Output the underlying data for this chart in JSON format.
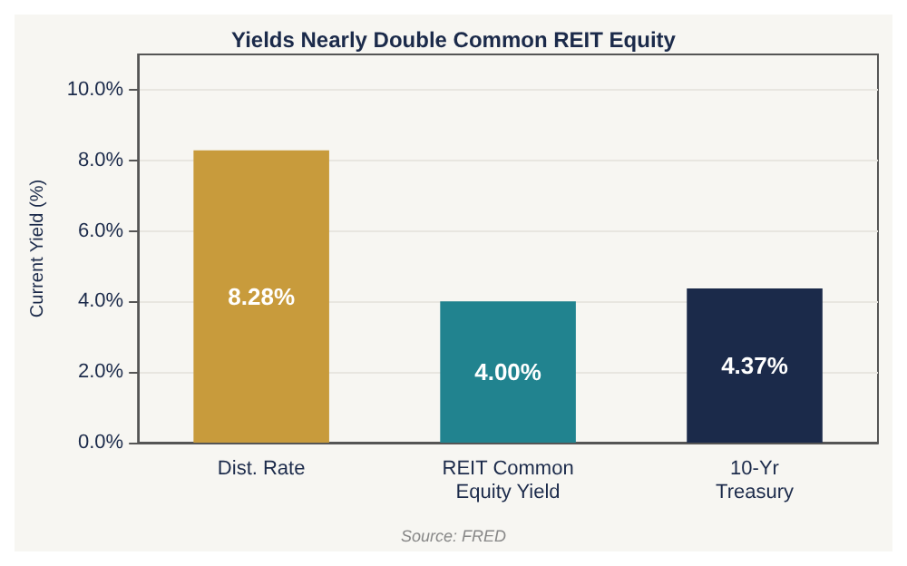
{
  "chart_data": {
    "type": "bar",
    "title": "Yields Nearly Double Common REIT Equity",
    "ylabel": "Current Yield (%)",
    "categories": [
      "Dist. Rate",
      "REIT Common\nEquity Yield",
      "10-Yr\nTreasury"
    ],
    "values": [
      8.28,
      4.0,
      4.37
    ],
    "colors": [
      "#c89b3c",
      "#21838f",
      "#1b2a4a"
    ],
    "value_labels": [
      "8.28%",
      "4.00%",
      "4.37%"
    ],
    "ylim": [
      0,
      11
    ],
    "yticks": [
      {
        "value": 0,
        "label": "0.0%"
      },
      {
        "value": 2,
        "label": "2.0%"
      },
      {
        "value": 4,
        "label": "4.0%"
      },
      {
        "value": 6,
        "label": "6.0%"
      },
      {
        "value": 8,
        "label": "8.0%"
      },
      {
        "value": 10,
        "label": "10.0%"
      }
    ],
    "grid": "y",
    "annotations": [
      "Source: FRED"
    ]
  }
}
